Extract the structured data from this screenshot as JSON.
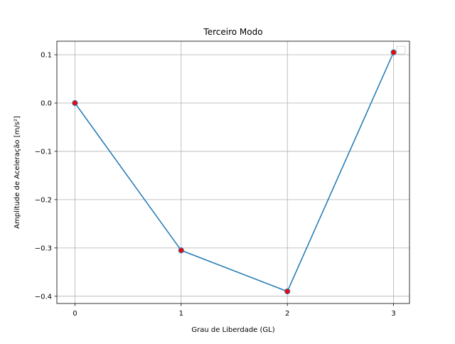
{
  "chart_data": {
    "type": "line",
    "title": "Terceiro Modo",
    "xlabel": "Grau de Liberdade (GL)",
    "ylabel": "Amplitude de Aceleração [m/s²]",
    "x": [
      0,
      1,
      2,
      3
    ],
    "series": [
      {
        "name": "",
        "values": [
          0.0,
          -0.305,
          -0.39,
          0.105
        ],
        "line_color": "#1f77b4",
        "marker_face": "#ff0000",
        "marker_edge": "#1f77b4"
      }
    ],
    "xlim": [
      -0.17,
      3.15
    ],
    "ylim": [
      -0.415,
      0.128
    ],
    "xticks": [
      0,
      1,
      2,
      3
    ],
    "xtick_labels": [
      "0",
      "1",
      "2",
      "3"
    ],
    "yticks": [
      -0.4,
      -0.3,
      -0.2,
      -0.1,
      0.0,
      0.1
    ],
    "ytick_labels": [
      "−0.4",
      "−0.3",
      "−0.2",
      "−0.1",
      "0.0",
      "0.1"
    ],
    "grid": true,
    "legend": "top-right (empty)"
  }
}
